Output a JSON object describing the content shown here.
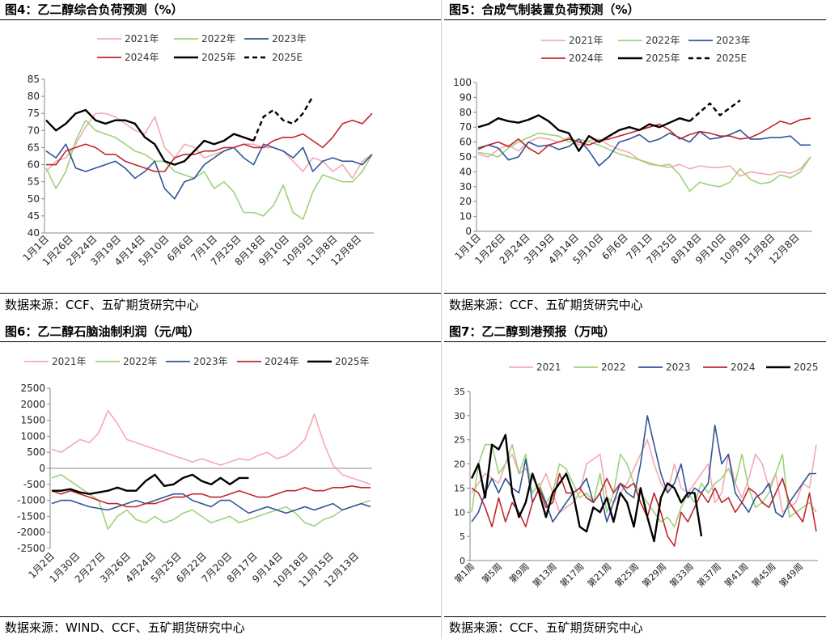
{
  "colors": {
    "y2021": "#f4a9b3",
    "y2022": "#9fd17a",
    "y2023": "#2f5597",
    "y2024": "#c0272d",
    "y2025": "#000000"
  },
  "charts": [
    {
      "title": "图4：乙二醇综合负荷预测（%）",
      "source": "数据来源：CCF、五矿期货研究中心",
      "chart_data": {
        "type": "line",
        "xlabel": "",
        "ylabel": "",
        "ylim": [
          40,
          85
        ],
        "yticks": [
          40,
          45,
          50,
          55,
          60,
          65,
          70,
          75,
          80,
          85
        ],
        "xticks": [
          "1月1日",
          "1月26日",
          "2月24日",
          "3月19日",
          "4月14日",
          "5月10日",
          "6月6日",
          "7月1日",
          "7月25日",
          "8月18日",
          "9月10日",
          "10月9日",
          "11月8日",
          "12月8日"
        ],
        "legend": [
          "2021年",
          "2022年",
          "2023年",
          "2024年",
          "2025年",
          "2025E"
        ],
        "series": [
          {
            "name": "2021年",
            "values": [
              58,
              61,
              62,
              66,
              71,
              75,
              75,
              74,
              72,
              70,
              69,
              74,
              65,
              62,
              66,
              65,
              62,
              63,
              64,
              65,
              66,
              66,
              65,
              65,
              64,
              61,
              58,
              62,
              61,
              58,
              60,
              56,
              61,
              63
            ]
          },
          {
            "name": "2022年",
            "values": [
              59,
              53,
              58,
              67,
              73,
              70,
              69,
              68,
              66,
              64,
              63,
              61,
              61,
              58,
              57,
              56,
              58,
              53,
              55,
              52,
              46,
              46,
              45,
              48,
              54,
              46,
              44,
              52,
              57,
              56,
              55,
              55,
              58,
              63
            ]
          },
          {
            "name": "2023年",
            "values": [
              64,
              62,
              66,
              59,
              58,
              59,
              60,
              61,
              59,
              56,
              58,
              61,
              53,
              50,
              55,
              56,
              60,
              62,
              64,
              65,
              62,
              60,
              66,
              65,
              64,
              62,
              65,
              58,
              61,
              62,
              61,
              61,
              60,
              63
            ]
          },
          {
            "name": "2024年",
            "values": [
              60,
              60,
              64,
              65,
              66,
              65,
              63,
              63,
              61,
              60,
              59,
              58,
              58,
              62,
              63,
              63,
              64,
              64,
              65,
              65,
              66,
              65,
              65,
              67,
              68,
              68,
              69,
              67,
              65,
              68,
              72,
              73,
              72,
              75
            ]
          },
          {
            "name": "2025年",
            "values": [
              73,
              70,
              72,
              75,
              76,
              73,
              72,
              73,
              73,
              72,
              68,
              66,
              61,
              60,
              61,
              64,
              67,
              66,
              67,
              69,
              68,
              67
            ]
          },
          {
            "name": "2025E",
            "values": [
              null,
              null,
              null,
              null,
              null,
              null,
              null,
              null,
              null,
              null,
              null,
              null,
              null,
              null,
              null,
              null,
              null,
              null,
              null,
              null,
              null,
              67,
              74,
              76,
              73,
              72,
              75,
              80
            ]
          }
        ]
      }
    },
    {
      "title": "图5：合成气制装置负荷预测（%）",
      "source": "数据来源：CCF、五矿期货研究中心",
      "chart_data": {
        "type": "line",
        "xlabel": "",
        "ylabel": "",
        "ylim": [
          0,
          100
        ],
        "yticks": [
          0,
          10,
          20,
          30,
          40,
          50,
          60,
          70,
          80,
          90,
          100
        ],
        "xticks": [
          "1月1日",
          "1月26日",
          "2月24日",
          "3月19日",
          "4月14日",
          "5月10日",
          "6月6日",
          "7月1日",
          "7月25日",
          "8月18日",
          "9月10日",
          "10月9日",
          "11月8日",
          "12月8日"
        ],
        "legend": [
          "2021年",
          "2022年",
          "2023年",
          "2024年",
          "2025年",
          "2025E"
        ],
        "series": [
          {
            "name": "2021年",
            "values": [
              52,
              50,
              55,
              58,
              54,
              60,
              63,
              62,
              60,
              63,
              58,
              61,
              62,
              58,
              55,
              53,
              48,
              45,
              44,
              43,
              45,
              42,
              44,
              43,
              43,
              44,
              37,
              40,
              39,
              38,
              40,
              39,
              42,
              50
            ]
          },
          {
            "name": "2022年",
            "values": [
              53,
              52,
              50,
              56,
              60,
              63,
              66,
              65,
              64,
              60,
              62,
              60,
              58,
              55,
              52,
              50,
              48,
              46,
              44,
              45,
              38,
              27,
              33,
              31,
              30,
              33,
              42,
              35,
              32,
              33,
              38,
              36,
              40,
              50
            ]
          },
          {
            "name": "2023年",
            "values": [
              56,
              58,
              56,
              48,
              50,
              60,
              57,
              58,
              55,
              57,
              62,
              54,
              44,
              50,
              60,
              62,
              65,
              60,
              62,
              66,
              63,
              60,
              67,
              62,
              63,
              65,
              68,
              62,
              62,
              63,
              63,
              64,
              58,
              58
            ]
          },
          {
            "name": "2024年",
            "values": [
              55,
              58,
              60,
              57,
              62,
              56,
              52,
              58,
              60,
              62,
              60,
              58,
              61,
              62,
              64,
              66,
              68,
              70,
              72,
              68,
              62,
              65,
              67,
              66,
              64,
              64,
              62,
              63,
              66,
              70,
              74,
              72,
              75,
              76
            ]
          },
          {
            "name": "2025年",
            "values": [
              70,
              72,
              76,
              74,
              73,
              75,
              78,
              74,
              68,
              66,
              54,
              64,
              60,
              64,
              68,
              70,
              68,
              72,
              70,
              73,
              76,
              74
            ]
          },
          {
            "name": "2025E",
            "values": [
              null,
              null,
              null,
              null,
              null,
              null,
              null,
              null,
              null,
              null,
              null,
              null,
              null,
              null,
              null,
              null,
              null,
              null,
              null,
              null,
              null,
              74,
              80,
              86,
              78,
              83,
              88
            ]
          }
        ]
      }
    },
    {
      "title": "图6：乙二醇石脑油制利润（元/吨）",
      "source": "数据来源：WIND、CCF、五矿期货研究中心",
      "chart_data": {
        "type": "line",
        "xlabel": "",
        "ylabel": "",
        "ylim": [
          -2500,
          2500
        ],
        "yticks": [
          -2500,
          -2000,
          -1500,
          -1000,
          -500,
          0,
          500,
          1000,
          1500,
          2000,
          2500
        ],
        "xticks": [
          "1月2日",
          "1月30日",
          "2月27日",
          "3月26日",
          "4月24日",
          "5月25日",
          "6月22日",
          "7月20日",
          "8月17日",
          "9月14日",
          "10月18日",
          "11月15日",
          "12月13日"
        ],
        "legend": [
          "2021年",
          "2022年",
          "2023年",
          "2024年",
          "2025年"
        ],
        "series": [
          {
            "name": "2021年",
            "values": [
              600,
              500,
              700,
              900,
              800,
              1100,
              1800,
              1400,
              900,
              800,
              700,
              600,
              500,
              400,
              300,
              200,
              300,
              200,
              100,
              200,
              300,
              250,
              400,
              500,
              300,
              400,
              600,
              900,
              1700,
              800,
              100,
              -200,
              -300,
              -400,
              -500
            ]
          },
          {
            "name": "2022年",
            "values": [
              -300,
              -200,
              -400,
              -600,
              -800,
              -1000,
              -1900,
              -1500,
              -1300,
              -1600,
              -1700,
              -1500,
              -1700,
              -1600,
              -1400,
              -1300,
              -1500,
              -1700,
              -1600,
              -1500,
              -1700,
              -1600,
              -1500,
              -1400,
              -1300,
              -1200,
              -1400,
              -1700,
              -1800,
              -1600,
              -1500,
              -1300,
              -1200,
              -1100,
              -1000
            ]
          },
          {
            "name": "2023年",
            "values": [
              -1100,
              -1000,
              -1000,
              -1100,
              -1200,
              -1250,
              -1300,
              -1200,
              -1100,
              -1000,
              -1100,
              -1000,
              -900,
              -800,
              -800,
              -1000,
              -1100,
              -1200,
              -1000,
              -1000,
              -1200,
              -1400,
              -1300,
              -1200,
              -1300,
              -1400,
              -1300,
              -1200,
              -1300,
              -1200,
              -1100,
              -1300,
              -1200,
              -1100,
              -1200
            ]
          },
          {
            "name": "2024年",
            "values": [
              -700,
              -800,
              -700,
              -800,
              -900,
              -1000,
              -1100,
              -1100,
              -1200,
              -1200,
              -1100,
              -1100,
              -1000,
              -900,
              -900,
              -800,
              -800,
              -900,
              -900,
              -800,
              -700,
              -800,
              -900,
              -900,
              -800,
              -700,
              -700,
              -600,
              -700,
              -700,
              -600,
              -600,
              -550,
              -600,
              -600
            ]
          },
          {
            "name": "2025年",
            "values": [
              -700,
              -700,
              -650,
              -750,
              -800,
              -750,
              -700,
              -600,
              -700,
              -700,
              -400,
              -200,
              -550,
              -500,
              -300,
              -200,
              -400,
              -500,
              -300,
              -500,
              -300,
              -300
            ]
          }
        ]
      }
    },
    {
      "title": "图7：乙二醇到港预报（万吨）",
      "source": "数据来源：CCF、五矿期货研究中心",
      "chart_data": {
        "type": "line",
        "xlabel": "",
        "ylabel": "",
        "ylim": [
          0,
          35
        ],
        "yticks": [
          0,
          5,
          10,
          15,
          20,
          25,
          30,
          35
        ],
        "xticks": [
          "第1周",
          "第5周",
          "第9周",
          "第13周",
          "第17周",
          "第21周",
          "第25周",
          "第29周",
          "第33周",
          "第37周",
          "第41周",
          "第45周",
          "第49周"
        ],
        "legend": [
          "2021",
          "2022",
          "2023",
          "2024",
          "2025"
        ],
        "series": [
          {
            "name": "2021",
            "values": [
              14,
              16,
              18,
              17,
              16,
              20,
              22,
              18,
              19,
              17,
              15,
              18,
              14,
              10,
              11,
              12,
              14,
              20,
              21,
              22,
              13,
              12,
              14,
              16,
              19,
              22,
              25,
              20,
              16,
              14,
              20,
              15,
              14,
              16,
              18,
              20,
              12,
              14,
              22,
              16,
              13,
              17,
              22,
              20,
              15,
              18,
              10,
              11,
              12,
              16,
              15,
              24
            ]
          },
          {
            "name": "2022",
            "values": [
              10,
              20,
              24,
              24,
              18,
              20,
              24,
              18,
              22,
              14,
              16,
              12,
              14,
              20,
              19,
              16,
              13,
              14,
              12,
              18,
              10,
              14,
              22,
              20,
              16,
              14,
              12,
              10,
              8,
              9,
              7,
              11,
              14,
              12,
              16,
              14,
              16,
              17,
              19,
              16,
              22,
              15,
              11,
              12,
              14,
              18,
              22,
              9,
              10,
              11,
              12,
              10
            ]
          },
          {
            "name": "2023",
            "values": [
              8,
              10,
              14,
              17,
              14,
              17,
              15,
              14,
              21,
              12,
              15,
              12,
              8,
              10,
              12,
              14,
              15,
              17,
              12,
              14,
              8,
              12,
              16,
              14,
              13,
              20,
              30,
              24,
              18,
              14,
              16,
              20,
              13,
              15,
              14,
              16,
              28,
              20,
              22,
              14,
              12,
              10,
              13,
              14,
              16,
              10,
              9,
              12,
              14,
              16,
              18,
              18
            ]
          },
          {
            "name": "2024",
            "values": [
              15,
              14,
              11,
              7,
              13,
              8,
              12,
              10,
              7,
              12,
              15,
              11,
              12,
              18,
              14,
              14,
              15,
              13,
              12,
              14,
              17,
              14,
              16,
              15,
              16,
              12,
              9,
              14,
              10,
              5,
              3,
              10,
              8,
              11,
              14,
              12,
              15,
              12,
              13,
              10,
              12,
              15,
              14,
              12,
              11,
              14,
              17,
              12,
              10,
              8,
              14,
              6
            ]
          },
          {
            "name": "2025",
            "values": [
              17,
              20,
              13,
              24,
              23,
              26,
              14,
              9,
              12,
              18,
              14,
              9,
              14,
              16,
              18,
              14,
              7,
              6,
              11,
              10,
              13,
              8,
              14,
              12,
              7,
              15,
              9,
              4,
              13,
              16,
              15,
              12,
              14,
              14,
              5
            ]
          }
        ]
      }
    }
  ]
}
